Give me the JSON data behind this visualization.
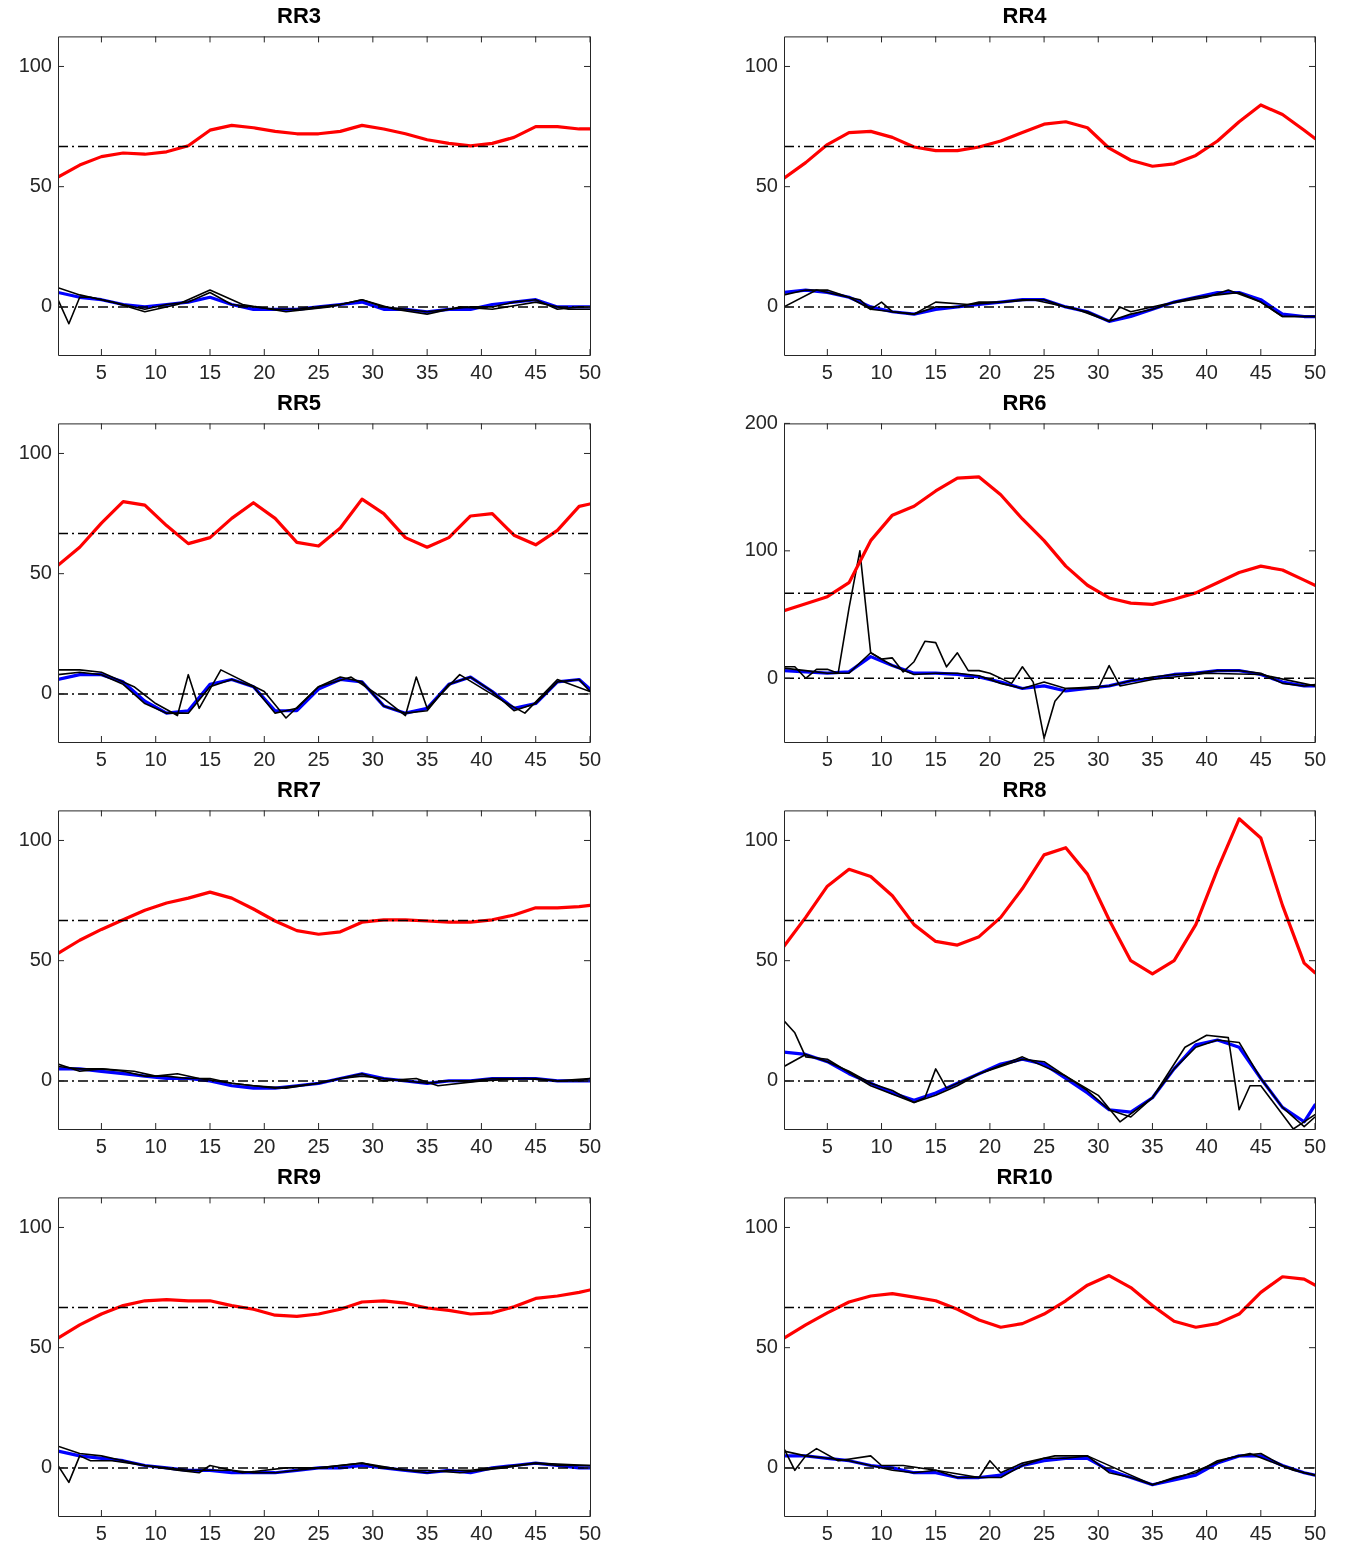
{
  "chart_data": [
    {
      "type": "line",
      "title": "RR3",
      "x": [
        1,
        3,
        5,
        7,
        9,
        11,
        13,
        15,
        17,
        19,
        21,
        23,
        25,
        27,
        29,
        31,
        33,
        35,
        37,
        39,
        41,
        43,
        45,
        47,
        49,
        50
      ],
      "xlim": [
        1,
        50
      ],
      "xticks": [
        5,
        10,
        15,
        20,
        25,
        30,
        35,
        40,
        45,
        50
      ],
      "ylim": [
        -20,
        112.5
      ],
      "yticks": [
        0,
        50,
        100
      ],
      "grid": false,
      "legend": false,
      "marker": "none",
      "line_style": "solid",
      "ref_lines": [
        {
          "axis": "y",
          "value": 0,
          "color": "#000000",
          "line_style": "dashed"
        },
        {
          "axis": "y",
          "value": 66.7,
          "color": "#000000",
          "line_style": "dashed"
        }
      ],
      "series": [
        {
          "color": "#ff0000",
          "values": [
            54,
            59,
            62.5,
            64,
            63.5,
            64.5,
            67,
            73.5,
            75.5,
            74.5,
            73,
            72,
            72,
            73,
            75.5,
            74,
            72,
            69.5,
            68,
            67,
            68,
            70.5,
            75,
            75,
            74,
            74
          ]
        },
        {
          "color": "#000000",
          "values": [
            8,
            5,
            3,
            1,
            -1,
            1,
            2,
            6,
            1,
            0,
            -1,
            -1,
            0,
            1,
            3,
            0,
            -1,
            -2,
            -1,
            0,
            0,
            2,
            3,
            -1,
            0,
            0
          ]
        },
        {
          "color": "#000000",
          "x": [
            1,
            2,
            3,
            4,
            6,
            9,
            12,
            15,
            18,
            22,
            26,
            29,
            32,
            35,
            38,
            41,
            45,
            48,
            50
          ],
          "values": [
            3,
            -7,
            4,
            4,
            2,
            -2,
            1,
            7,
            1,
            -2,
            0,
            3,
            -1,
            -3,
            0,
            -1,
            2,
            -1,
            -1
          ]
        },
        {
          "color": "#0000ff",
          "values": [
            6,
            4,
            3,
            1,
            0,
            1,
            2,
            4,
            1,
            -1,
            -1,
            -1,
            0,
            1,
            2,
            -1,
            -1,
            -2,
            -1,
            -1,
            1,
            2,
            3,
            0,
            0,
            0
          ]
        }
      ]
    },
    {
      "type": "line",
      "title": "RR4",
      "x": [
        1,
        3,
        5,
        7,
        9,
        11,
        13,
        15,
        17,
        19,
        21,
        23,
        25,
        27,
        29,
        31,
        33,
        35,
        37,
        39,
        41,
        43,
        45,
        47,
        49,
        50
      ],
      "xlim": [
        1,
        50
      ],
      "xticks": [
        5,
        10,
        15,
        20,
        25,
        30,
        35,
        40,
        45,
        50
      ],
      "ylim": [
        -20,
        112.5
      ],
      "yticks": [
        0,
        50,
        100
      ],
      "grid": false,
      "legend": false,
      "marker": "none",
      "line_style": "solid",
      "ref_lines": [
        {
          "axis": "y",
          "value": 0,
          "color": "#000000",
          "line_style": "dashed"
        },
        {
          "axis": "y",
          "value": 66.7,
          "color": "#000000",
          "line_style": "dashed"
        }
      ],
      "series": [
        {
          "color": "#ff0000",
          "values": [
            53.5,
            60,
            67.5,
            72.5,
            73,
            70.5,
            66.5,
            65,
            65,
            66.5,
            69,
            72.5,
            76,
            77,
            74.5,
            66,
            61,
            58.5,
            59.5,
            63,
            69,
            77,
            84,
            80,
            73.5,
            70
          ]
        },
        {
          "color": "#000000",
          "values": [
            5,
            7,
            7,
            4,
            -1,
            -2,
            -3,
            0,
            0,
            2,
            2,
            3,
            3,
            0,
            -2,
            -6,
            -3,
            -1,
            2,
            4,
            5,
            6,
            2,
            -4,
            -4,
            -4
          ]
        },
        {
          "color": "#000000",
          "x": [
            1,
            4,
            8,
            9,
            10,
            11,
            13,
            15,
            18,
            24,
            28,
            31,
            32,
            33,
            36,
            40,
            42,
            45,
            47,
            50
          ],
          "values": [
            0,
            7,
            3,
            -1,
            2,
            -2,
            -3,
            2,
            1,
            3,
            -1,
            -6,
            0,
            -2,
            1,
            4,
            7,
            2,
            -4,
            -4
          ]
        },
        {
          "color": "#0000ff",
          "values": [
            6,
            7,
            6,
            4,
            0,
            -2,
            -3,
            -1,
            0,
            1,
            2,
            3,
            3,
            0,
            -2,
            -6,
            -4,
            -1,
            2,
            4,
            6,
            6,
            3,
            -3,
            -4,
            -4
          ]
        }
      ]
    },
    {
      "type": "line",
      "title": "RR5",
      "x": [
        1,
        3,
        5,
        7,
        9,
        11,
        13,
        15,
        17,
        19,
        21,
        23,
        25,
        27,
        29,
        31,
        33,
        35,
        37,
        39,
        41,
        43,
        45,
        47,
        49,
        50
      ],
      "xlim": [
        1,
        50
      ],
      "xticks": [
        5,
        10,
        15,
        20,
        25,
        30,
        35,
        40,
        45,
        50
      ],
      "ylim": [
        -20,
        112.5
      ],
      "yticks": [
        0,
        50,
        100
      ],
      "grid": false,
      "legend": false,
      "marker": "none",
      "line_style": "solid",
      "ref_lines": [
        {
          "axis": "y",
          "value": 0,
          "color": "#000000",
          "line_style": "dashed"
        },
        {
          "axis": "y",
          "value": 66.7,
          "color": "#000000",
          "line_style": "dashed"
        }
      ],
      "series": [
        {
          "color": "#ff0000",
          "values": [
            53.5,
            61,
            71,
            80,
            78.5,
            70,
            62.5,
            65,
            73,
            79.5,
            73,
            63,
            61.5,
            69,
            81,
            75,
            65,
            61,
            65,
            74,
            75,
            66,
            62,
            68,
            78,
            79
          ]
        },
        {
          "color": "#000000",
          "values": [
            8,
            9,
            8,
            4,
            -4,
            -8,
            -8,
            3,
            6,
            3,
            -8,
            -6,
            3,
            7,
            5,
            -5,
            -8,
            -7,
            4,
            7,
            1,
            -7,
            -4,
            5,
            6,
            1
          ]
        },
        {
          "color": "#000000",
          "x": [
            1,
            3,
            5,
            8,
            10,
            12,
            13,
            14,
            16,
            20,
            22,
            25,
            28,
            31,
            33,
            34,
            35,
            38,
            42,
            44,
            47,
            50
          ],
          "values": [
            10,
            10,
            9,
            3,
            -4,
            -9,
            8,
            -6,
            10,
            1,
            -10,
            3,
            7,
            -2,
            -9,
            7,
            -6,
            8,
            -3,
            -8,
            6,
            1
          ]
        },
        {
          "color": "#0000ff",
          "values": [
            6,
            8,
            8,
            5,
            -3,
            -8,
            -7,
            4,
            6,
            3,
            -7,
            -7,
            2,
            6,
            5,
            -5,
            -8,
            -6,
            4,
            7,
            1,
            -6,
            -4,
            5,
            6,
            2
          ]
        }
      ]
    },
    {
      "type": "line",
      "title": "RR6",
      "x": [
        1,
        3,
        5,
        7,
        9,
        11,
        13,
        15,
        17,
        19,
        21,
        23,
        25,
        27,
        29,
        31,
        33,
        35,
        37,
        39,
        41,
        43,
        45,
        47,
        49,
        50
      ],
      "xlim": [
        1,
        50
      ],
      "xticks": [
        5,
        10,
        15,
        20,
        25,
        30,
        35,
        40,
        45,
        50
      ],
      "ylim": [
        -50,
        200
      ],
      "yticks": [
        0,
        100,
        200
      ],
      "grid": false,
      "legend": false,
      "marker": "none",
      "line_style": "solid",
      "ref_lines": [
        {
          "axis": "y",
          "value": 0,
          "color": "#000000",
          "line_style": "dashed"
        },
        {
          "axis": "y",
          "value": 66.7,
          "color": "#000000",
          "line_style": "dashed"
        }
      ],
      "series": [
        {
          "color": "#ff0000",
          "values": [
            53,
            58.5,
            64,
            75,
            108,
            128,
            135,
            147,
            157,
            158,
            144,
            125,
            108,
            88,
            73,
            63,
            59,
            58,
            62,
            67,
            75,
            83,
            88,
            85,
            77,
            73
          ]
        },
        {
          "color": "#000000",
          "values": [
            8,
            6,
            4,
            4,
            20,
            10,
            3,
            4,
            4,
            2,
            -4,
            -8,
            -3,
            -8,
            -7,
            -6,
            -2,
            1,
            3,
            4,
            6,
            6,
            4,
            -4,
            -6,
            -5
          ]
        },
        {
          "color": "#000000",
          "x": [
            1,
            2,
            3,
            4,
            5,
            6,
            7,
            8,
            9,
            10,
            11,
            12,
            13,
            14,
            15,
            16,
            17,
            18,
            19,
            20,
            22,
            23,
            24,
            25,
            26,
            27,
            30,
            31,
            32,
            35,
            40,
            45,
            50
          ],
          "values": [
            9,
            9,
            0,
            7,
            7,
            4,
            55,
            100,
            20,
            15,
            16,
            5,
            13,
            29,
            28,
            9,
            20,
            6,
            6,
            4,
            -4,
            9,
            -3,
            -47,
            -18,
            -8,
            -8,
            10,
            -6,
            -1,
            4,
            3,
            -6
          ]
        },
        {
          "color": "#0000ff",
          "values": [
            6,
            5,
            4,
            5,
            17,
            10,
            4,
            4,
            3,
            1,
            -3,
            -8,
            -6,
            -10,
            -8,
            -6,
            -2,
            0,
            3,
            4,
            6,
            6,
            3,
            -3,
            -6,
            -6
          ]
        }
      ]
    },
    {
      "type": "line",
      "title": "RR7",
      "x": [
        1,
        3,
        5,
        7,
        9,
        11,
        13,
        15,
        17,
        19,
        21,
        23,
        25,
        27,
        29,
        31,
        33,
        35,
        37,
        39,
        41,
        43,
        45,
        47,
        49,
        50
      ],
      "xlim": [
        1,
        50
      ],
      "xticks": [
        5,
        10,
        15,
        20,
        25,
        30,
        35,
        40,
        45,
        50
      ],
      "ylim": [
        -20,
        112.5
      ],
      "yticks": [
        0,
        50,
        100
      ],
      "grid": false,
      "legend": false,
      "marker": "none",
      "line_style": "solid",
      "ref_lines": [
        {
          "axis": "y",
          "value": 0,
          "color": "#000000",
          "line_style": "dashed"
        },
        {
          "axis": "y",
          "value": 66.7,
          "color": "#000000",
          "line_style": "dashed"
        }
      ],
      "series": [
        {
          "color": "#ff0000",
          "values": [
            53,
            58.5,
            63,
            67,
            71,
            74,
            76,
            78.5,
            76,
            71.5,
            66.5,
            62.5,
            61,
            62,
            66,
            67,
            67,
            66.5,
            66,
            66,
            67,
            69,
            72,
            72,
            72.5,
            73
          ]
        },
        {
          "color": "#000000",
          "values": [
            6,
            5,
            5,
            4,
            2,
            2,
            1,
            1,
            -1,
            -2,
            -3,
            -2,
            -1,
            1,
            2,
            1,
            0,
            -1,
            0,
            0,
            1,
            1,
            1,
            0,
            0,
            1
          ]
        },
        {
          "color": "#000000",
          "x": [
            1,
            3,
            5,
            8,
            10,
            12,
            14,
            17,
            19,
            22,
            25,
            29,
            31,
            34,
            36,
            40,
            44,
            47,
            50
          ],
          "values": [
            7,
            4,
            5,
            4,
            2,
            3,
            1,
            -1,
            -2,
            -3,
            -1,
            3,
            0,
            1,
            -2,
            0,
            1,
            0,
            1
          ]
        },
        {
          "color": "#0000ff",
          "values": [
            5,
            5,
            4,
            3,
            2,
            1,
            1,
            0,
            -2,
            -3,
            -3,
            -2,
            -1,
            1,
            3,
            1,
            0,
            -1,
            0,
            0,
            1,
            1,
            1,
            0,
            0,
            0
          ]
        }
      ]
    },
    {
      "type": "line",
      "title": "RR8",
      "x": [
        1,
        3,
        5,
        7,
        9,
        11,
        13,
        15,
        17,
        19,
        21,
        23,
        25,
        27,
        29,
        31,
        33,
        35,
        37,
        39,
        41,
        43,
        45,
        47,
        49,
        50
      ],
      "xlim": [
        1,
        50
      ],
      "xticks": [
        5,
        10,
        15,
        20,
        25,
        30,
        35,
        40,
        45,
        50
      ],
      "ylim": [
        -20,
        112.5
      ],
      "yticks": [
        0,
        50,
        100
      ],
      "grid": false,
      "legend": false,
      "marker": "none",
      "line_style": "solid",
      "ref_lines": [
        {
          "axis": "y",
          "value": 0,
          "color": "#000000",
          "line_style": "dashed"
        },
        {
          "axis": "y",
          "value": 66.7,
          "color": "#000000",
          "line_style": "dashed"
        }
      ],
      "series": [
        {
          "color": "#ff0000",
          "values": [
            56,
            68,
            81,
            88,
            85,
            77,
            65,
            58,
            56.5,
            60,
            68,
            80,
            94,
            97,
            86,
            67,
            50,
            44.5,
            50,
            65,
            88,
            109,
            101,
            73,
            49,
            45
          ]
        },
        {
          "color": "#000000",
          "values": [
            6,
            11,
            8,
            4,
            -1,
            -4,
            -9,
            -6,
            -2,
            3,
            6,
            9,
            8,
            2,
            -4,
            -12,
            -15,
            -7,
            5,
            14,
            17,
            16,
            1,
            -11,
            -19,
            -15
          ]
        },
        {
          "color": "#000000",
          "x": [
            1,
            2,
            3,
            5,
            9,
            13,
            14,
            15,
            16,
            19,
            23,
            27,
            30,
            32,
            35,
            38,
            40,
            42,
            43,
            44,
            45,
            47,
            48,
            50
          ],
          "values": [
            25,
            20,
            10,
            9,
            -2,
            -9,
            -7,
            5,
            -3,
            3,
            10,
            2,
            -6,
            -17,
            -7,
            14,
            19,
            18,
            -12,
            -2,
            -2,
            -14,
            -20,
            -14
          ]
        },
        {
          "color": "#0000ff",
          "values": [
            12,
            11,
            8,
            3,
            -1,
            -5,
            -8,
            -5,
            -1,
            3,
            7,
            9,
            7,
            1,
            -5,
            -12,
            -13,
            -7,
            5,
            15,
            17,
            14,
            1,
            -11,
            -17,
            -10
          ]
        }
      ]
    },
    {
      "type": "line",
      "title": "RR9",
      "x": [
        1,
        3,
        5,
        7,
        9,
        11,
        13,
        15,
        17,
        19,
        21,
        23,
        25,
        27,
        29,
        31,
        33,
        35,
        37,
        39,
        41,
        43,
        45,
        47,
        49,
        50
      ],
      "xlim": [
        1,
        50
      ],
      "xticks": [
        5,
        10,
        15,
        20,
        25,
        30,
        35,
        40,
        45,
        50
      ],
      "ylim": [
        -20,
        112.5
      ],
      "yticks": [
        0,
        50,
        100
      ],
      "grid": false,
      "legend": false,
      "marker": "none",
      "line_style": "solid",
      "ref_lines": [
        {
          "axis": "y",
          "value": 0,
          "color": "#000000",
          "line_style": "dashed"
        },
        {
          "axis": "y",
          "value": 66.7,
          "color": "#000000",
          "line_style": "dashed"
        }
      ],
      "series": [
        {
          "color": "#ff0000",
          "values": [
            54,
            59.5,
            64,
            67.5,
            69.5,
            70,
            69.5,
            69.5,
            67.5,
            66,
            63.5,
            63,
            64,
            66,
            69,
            69.5,
            68.5,
            66.5,
            65.5,
            64,
            64.5,
            67,
            70.5,
            71.5,
            73,
            74
          ]
        },
        {
          "color": "#000000",
          "values": [
            9,
            6,
            5,
            3,
            1,
            0,
            -1,
            -1,
            -1,
            -2,
            -2,
            -1,
            0,
            1,
            2,
            0,
            -1,
            -2,
            -1,
            -1,
            0,
            1,
            2,
            1,
            1,
            1
          ]
        },
        {
          "color": "#000000",
          "x": [
            1,
            2,
            3,
            4,
            6,
            9,
            12,
            14,
            15,
            18,
            22,
            25,
            29,
            33,
            35,
            38,
            42,
            45,
            50
          ],
          "values": [
            1,
            -6,
            5,
            3,
            3,
            1,
            -1,
            -2,
            1,
            -2,
            0,
            0,
            2,
            -1,
            -1,
            -2,
            0,
            2,
            1
          ]
        },
        {
          "color": "#0000ff",
          "values": [
            7,
            5,
            4,
            3,
            1,
            0,
            -1,
            -1,
            -2,
            -2,
            -2,
            -1,
            0,
            0,
            1,
            0,
            -1,
            -2,
            -1,
            -2,
            0,
            1,
            2,
            1,
            0,
            0
          ]
        }
      ]
    },
    {
      "type": "line",
      "title": "RR10",
      "x": [
        1,
        3,
        5,
        7,
        9,
        11,
        13,
        15,
        17,
        19,
        21,
        23,
        25,
        27,
        29,
        31,
        33,
        35,
        37,
        39,
        41,
        43,
        45,
        47,
        49,
        50
      ],
      "xlim": [
        1,
        50
      ],
      "xticks": [
        5,
        10,
        15,
        20,
        25,
        30,
        35,
        40,
        45,
        50
      ],
      "ylim": [
        -20,
        112.5
      ],
      "yticks": [
        0,
        50,
        100
      ],
      "grid": false,
      "legend": false,
      "marker": "none",
      "line_style": "solid",
      "ref_lines": [
        {
          "axis": "y",
          "value": 0,
          "color": "#000000",
          "line_style": "dashed"
        },
        {
          "axis": "y",
          "value": 66.7,
          "color": "#000000",
          "line_style": "dashed"
        }
      ],
      "series": [
        {
          "color": "#ff0000",
          "values": [
            54,
            59.5,
            64.5,
            69,
            71.5,
            72.5,
            71,
            69.5,
            66,
            61.5,
            58.5,
            60,
            64,
            69.5,
            76,
            80,
            75,
            67.5,
            61,
            58.5,
            60,
            64,
            73,
            79.5,
            78.5,
            76
          ]
        },
        {
          "color": "#000000",
          "values": [
            7,
            5,
            4,
            3,
            1,
            -1,
            -2,
            -1,
            -4,
            -4,
            -4,
            1,
            4,
            4,
            5,
            -2,
            -4,
            -7,
            -4,
            -2,
            3,
            5,
            6,
            1,
            -2,
            -3
          ]
        },
        {
          "color": "#000000",
          "x": [
            1,
            2,
            3,
            4,
            6,
            9,
            10,
            12,
            15,
            19,
            20,
            21,
            23,
            26,
            29,
            33,
            35,
            38,
            42,
            44,
            48,
            50
          ],
          "values": [
            8,
            -1,
            5,
            8,
            3,
            5,
            1,
            1,
            -1,
            -4,
            3,
            -2,
            2,
            5,
            5,
            -3,
            -7,
            -3,
            4,
            6,
            -1,
            -3
          ]
        },
        {
          "color": "#0000ff",
          "values": [
            5,
            5,
            4,
            3,
            1,
            0,
            -2,
            -2,
            -4,
            -4,
            -3,
            1,
            3,
            4,
            4,
            -1,
            -4,
            -7,
            -5,
            -3,
            2,
            5,
            5,
            1,
            -2,
            -3
          ]
        }
      ]
    }
  ]
}
